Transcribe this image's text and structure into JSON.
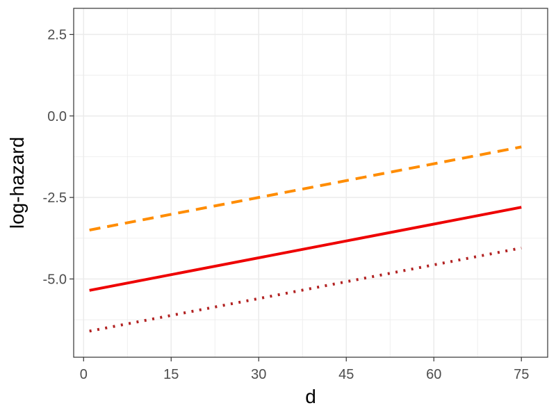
{
  "chart_data": {
    "type": "line",
    "title": "",
    "xlabel": "d",
    "ylabel": "log-hazard",
    "xlim": [
      -1.7,
      79.5
    ],
    "ylim": [
      -7.4,
      3.3
    ],
    "x_ticks": [
      0,
      15,
      30,
      45,
      60,
      75
    ],
    "y_ticks": [
      2.5,
      0.0,
      -2.5,
      -5.0
    ],
    "x_tick_labels": [
      "0",
      "15",
      "30",
      "45",
      "60",
      "75"
    ],
    "y_tick_labels": [
      "2.5",
      "0.0",
      "-2.5",
      "-5.0"
    ],
    "grid": true,
    "legend": "none",
    "series": [
      {
        "color": "#FF8C00",
        "dash": "dashed",
        "x": [
          1,
          75
        ],
        "y": [
          -3.5,
          -0.95
        ]
      },
      {
        "color": "#EE0000",
        "dash": "solid",
        "x": [
          1,
          75
        ],
        "y": [
          -5.35,
          -2.8
        ]
      },
      {
        "color": "#B22222",
        "dash": "dotted",
        "x": [
          1,
          75
        ],
        "y": [
          -6.6,
          -4.05
        ]
      }
    ]
  }
}
